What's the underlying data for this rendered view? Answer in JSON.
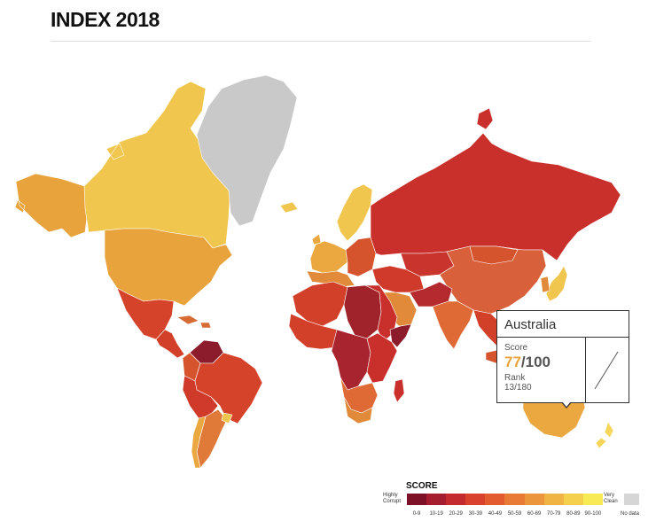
{
  "header": {
    "title": "INDEX 2018"
  },
  "map": {
    "regions": [
      {
        "name": "Alaska",
        "color": "#e8a33d"
      },
      {
        "name": "Canada",
        "color": "#f0c64e"
      },
      {
        "name": "Greenland",
        "color": "#c9c9c9"
      },
      {
        "name": "United States",
        "color": "#e8a33d"
      },
      {
        "name": "Mexico",
        "color": "#d5432b"
      },
      {
        "name": "Central America",
        "color": "#d3402a"
      },
      {
        "name": "Caribbean",
        "color": "#d86a34"
      },
      {
        "name": "Venezuela",
        "color": "#8c1b2b"
      },
      {
        "name": "Colombia",
        "color": "#d5542e"
      },
      {
        "name": "Brazil",
        "color": "#d5432b"
      },
      {
        "name": "Peru-Bolivia",
        "color": "#cf3a2a"
      },
      {
        "name": "Argentina",
        "color": "#e07a38"
      },
      {
        "name": "Chile",
        "color": "#eba840"
      },
      {
        "name": "Uruguay",
        "color": "#f0c64e"
      },
      {
        "name": "Iceland",
        "color": "#f0c64e"
      },
      {
        "name": "Scandinavia",
        "color": "#f0c64e"
      },
      {
        "name": "Western Europe",
        "color": "#eba840"
      },
      {
        "name": "Southern Europe",
        "color": "#e08a3a"
      },
      {
        "name": "Eastern Europe",
        "color": "#d5542e"
      },
      {
        "name": "Russia",
        "color": "#c9302c"
      },
      {
        "name": "Kazakhstan",
        "color": "#c9352c"
      },
      {
        "name": "China",
        "color": "#d8603a"
      },
      {
        "name": "Mongolia",
        "color": "#d5542e"
      },
      {
        "name": "Japan",
        "color": "#f0c64e"
      },
      {
        "name": "Korea",
        "color": "#e08a3a"
      },
      {
        "name": "Middle East",
        "color": "#cf3a2a"
      },
      {
        "name": "Arabia",
        "color": "#e08a3a"
      },
      {
        "name": "Iran-Afghanistan",
        "color": "#b52a2e"
      },
      {
        "name": "India",
        "color": "#df6a35"
      },
      {
        "name": "Southeast Asia",
        "color": "#d3402a"
      },
      {
        "name": "Indonesia",
        "color": "#d5542e"
      },
      {
        "name": "North Africa",
        "color": "#d3402a"
      },
      {
        "name": "Libya-Sudan",
        "color": "#a0232c"
      },
      {
        "name": "Egypt-Ethiopia",
        "color": "#c9302c"
      },
      {
        "name": "Horn of Africa",
        "color": "#8c1b2b"
      },
      {
        "name": "West Africa",
        "color": "#d3402a"
      },
      {
        "name": "Central Africa",
        "color": "#a82530"
      },
      {
        "name": "East Africa",
        "color": "#c9302c"
      },
      {
        "name": "Southern Africa",
        "color": "#df6a35"
      },
      {
        "name": "South Africa",
        "color": "#e08a3a"
      },
      {
        "name": "Madagascar",
        "color": "#c9302c"
      },
      {
        "name": "Australia",
        "color": "#eba840"
      },
      {
        "name": "New Zealand",
        "color": "#f5d65a"
      },
      {
        "name": "Papua New Guinea",
        "color": "#c9302c"
      }
    ]
  },
  "tooltip": {
    "country": "Australia",
    "score_label": "Score",
    "score_value": "77",
    "score_total": "/100",
    "rank_label": "Rank",
    "rank_value": "13/180",
    "trend_color": "#555555"
  },
  "legend": {
    "title": "SCORE",
    "low_label": "Highly Corrupt",
    "high_label": "Very Clean",
    "no_data_label": "No data",
    "no_data_color": "#d6d6d6",
    "bins": [
      {
        "range": "0-9",
        "color": "#7d1128"
      },
      {
        "range": "10-19",
        "color": "#a41e30"
      },
      {
        "range": "20-29",
        "color": "#c42b2f"
      },
      {
        "range": "30-39",
        "color": "#d9422c"
      },
      {
        "range": "40-49",
        "color": "#e25c30"
      },
      {
        "range": "50-59",
        "color": "#e87a35"
      },
      {
        "range": "60-69",
        "color": "#ec963b"
      },
      {
        "range": "70-79",
        "color": "#f0b444"
      },
      {
        "range": "80-89",
        "color": "#f5d04d"
      },
      {
        "range": "90-100",
        "color": "#f8ea55"
      }
    ]
  }
}
